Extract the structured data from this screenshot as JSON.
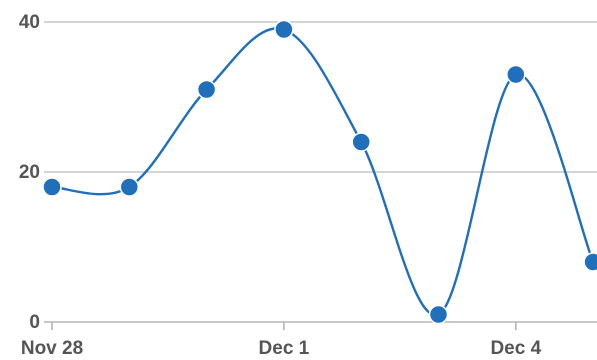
{
  "chart_data": {
    "type": "line",
    "title": "",
    "xlabel": "",
    "ylabel": "",
    "x": [
      "Nov 28",
      "Nov 29",
      "Nov 30",
      "Dec 1",
      "Dec 2",
      "Dec 3",
      "Dec 4",
      "Dec 5"
    ],
    "series": [
      {
        "values": [
          18,
          18,
          31,
          39,
          24,
          1,
          33,
          8
        ],
        "color": "#1f6fba"
      }
    ],
    "x_tick_labels": [
      "Nov 28",
      "Dec 1",
      "Dec 4"
    ],
    "y_tick_labels": [
      "0",
      "20",
      "40"
    ],
    "ylim": [
      0,
      40
    ],
    "grid": true,
    "legend": "none",
    "smooth": true
  }
}
